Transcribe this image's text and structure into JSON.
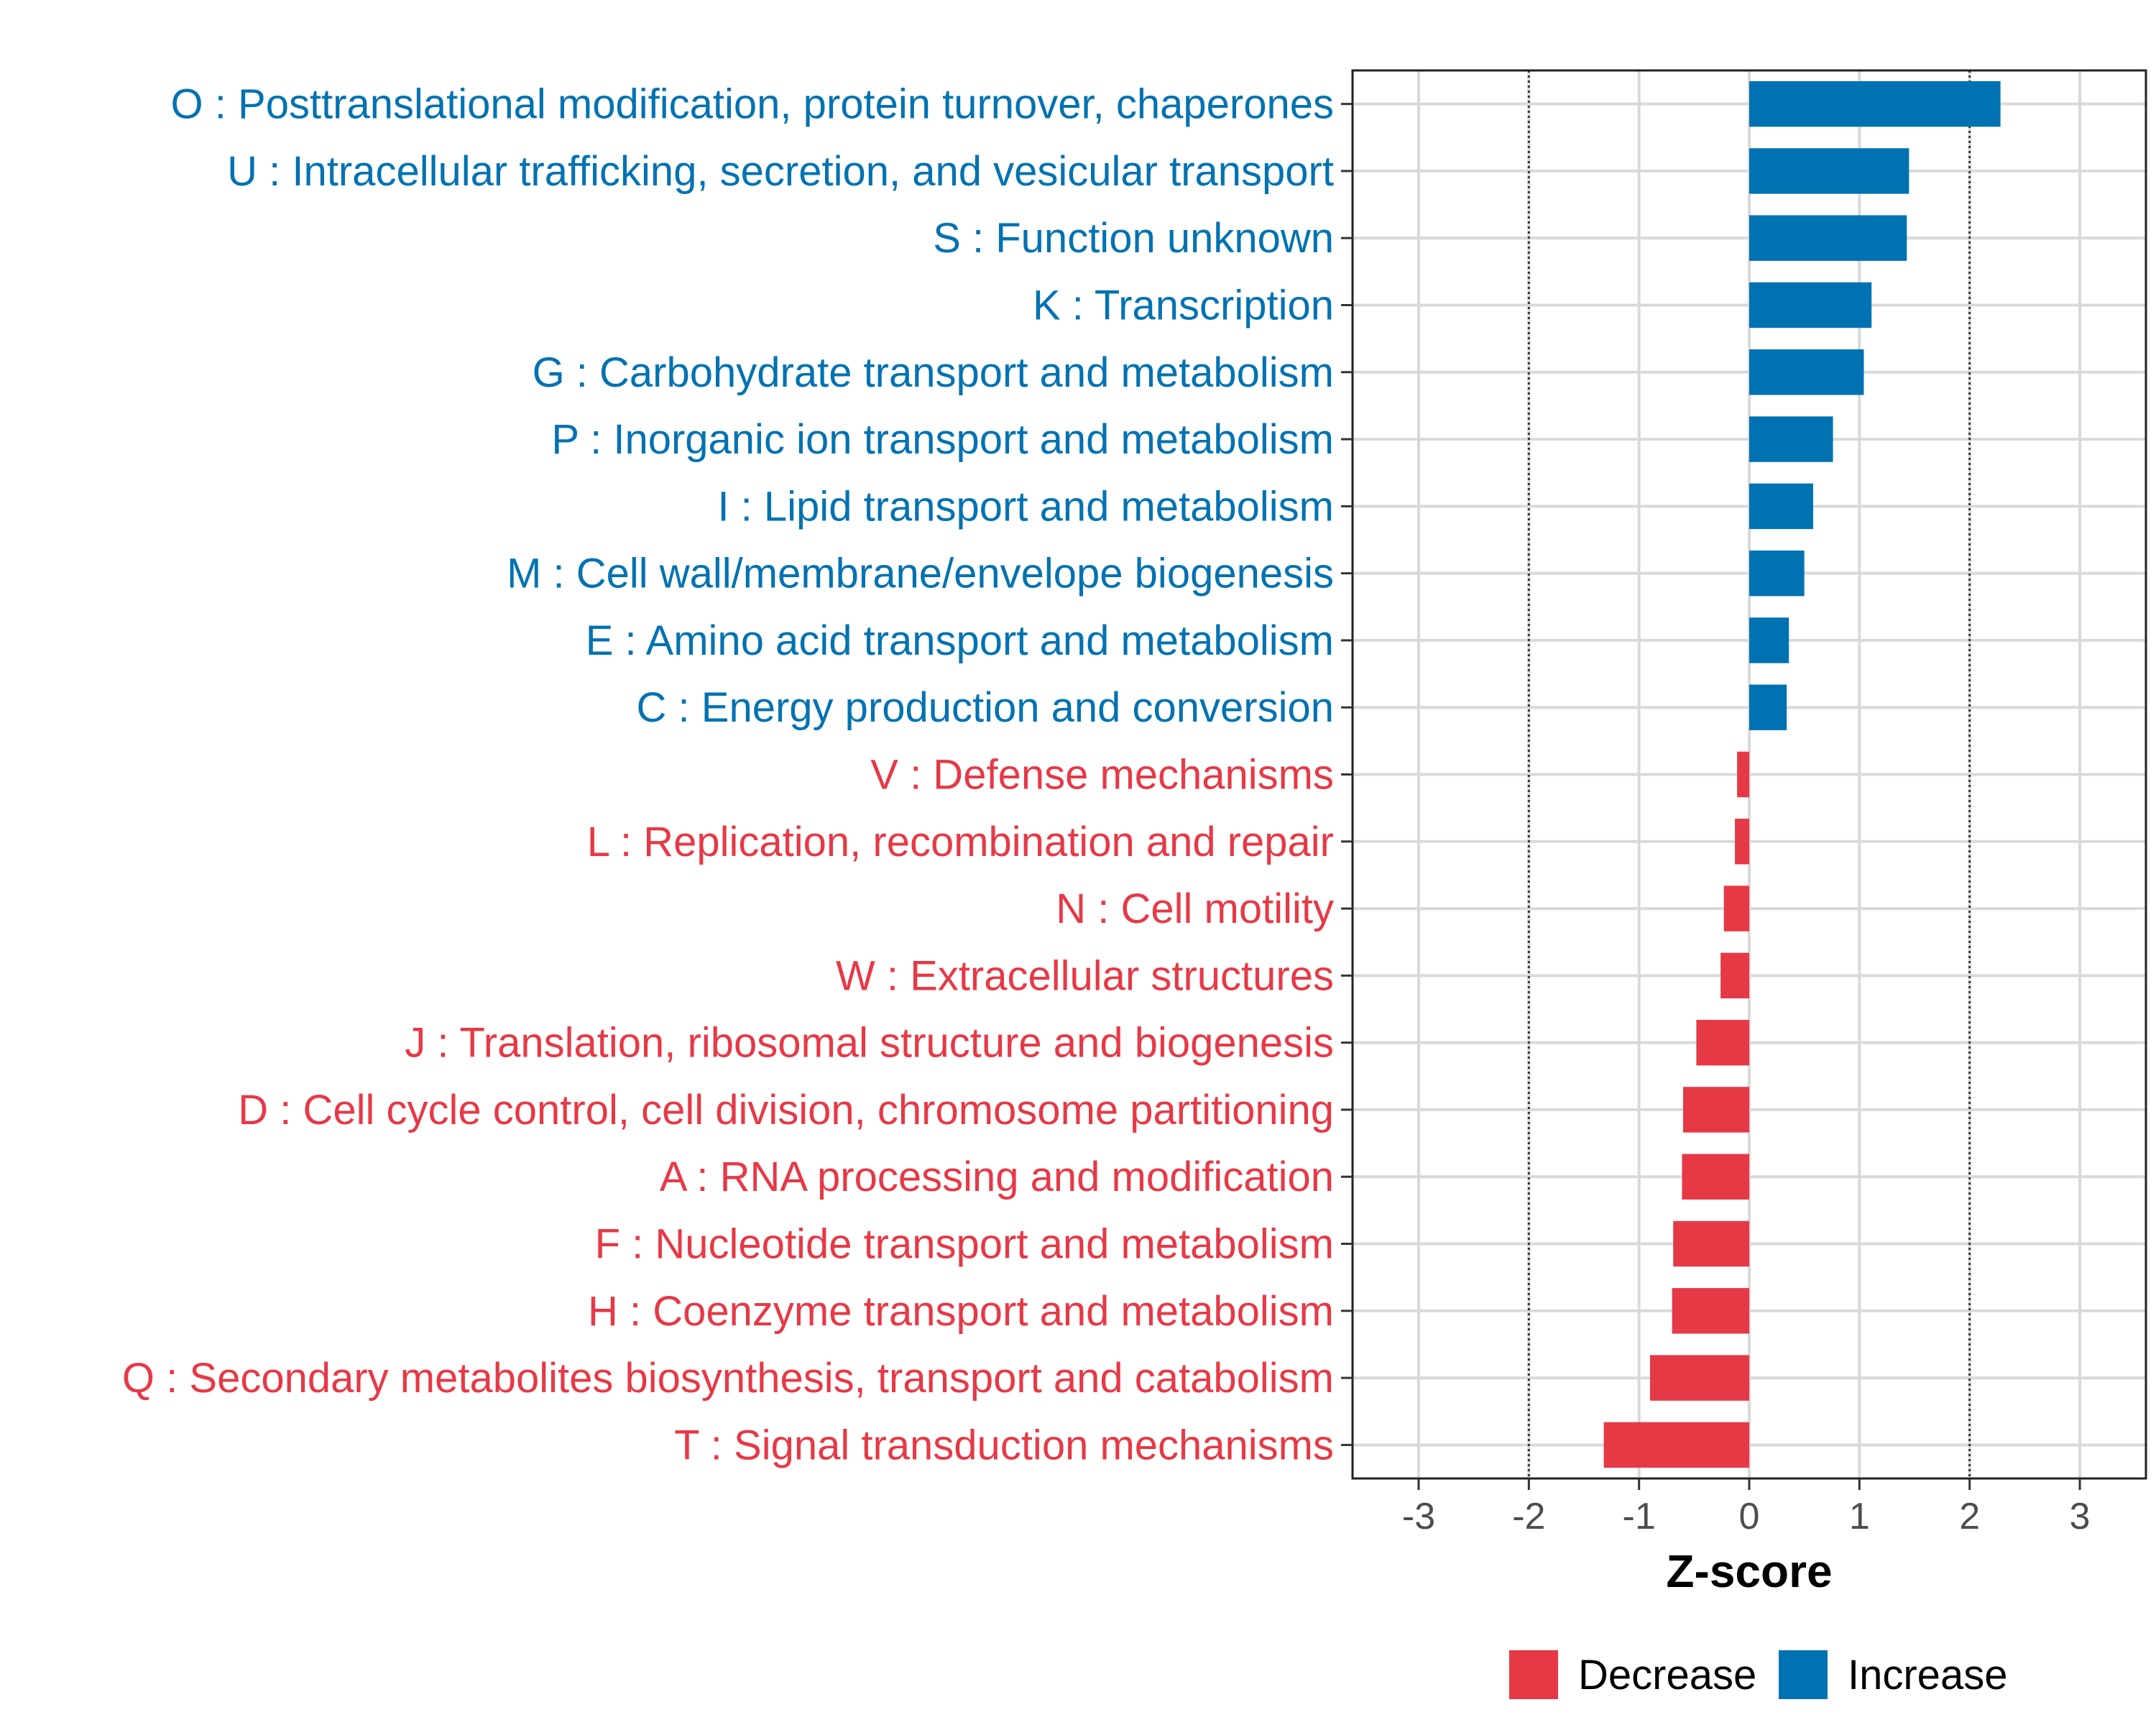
{
  "chart_data": {
    "type": "bar",
    "orientation": "horizontal",
    "xlabel": "Z-score",
    "xlim": [
      -3.6,
      3.6
    ],
    "xticks": [
      "-3",
      "-2",
      "-1",
      "0",
      "1",
      "2",
      "3"
    ],
    "thresholds": [
      -2,
      2
    ],
    "colors": {
      "Increase": "#0072b2",
      "Decrease": "#e63946"
    },
    "legend": {
      "position": "bottom",
      "entries": [
        "Decrease",
        "Increase"
      ]
    },
    "categories": [
      "O : Posttranslational modification, protein turnover, chaperones",
      "U : Intracellular trafficking, secretion, and vesicular transport",
      "S : Function unknown",
      "K : Transcription",
      "G : Carbohydrate transport and metabolism",
      "P : Inorganic ion transport and metabolism",
      "I : Lipid transport and metabolism",
      "M : Cell wall/membrane/envelope biogenesis",
      "E : Amino acid transport and metabolism",
      "C : Energy production and conversion",
      "V : Defense mechanisms",
      "L : Replication, recombination and repair",
      "N : Cell motility",
      "W : Extracellular structures",
      "J : Translation, ribosomal structure and biogenesis",
      "D : Cell cycle control, cell division, chromosome partitioning",
      "A : RNA processing and modification",
      "F : Nucleotide transport and metabolism",
      "H : Coenzyme transport and metabolism",
      "Q : Secondary metabolites biosynthesis, transport and catabolism",
      "T : Signal transduction mechanisms"
    ],
    "values": [
      2.28,
      1.45,
      1.43,
      1.11,
      1.04,
      0.76,
      0.58,
      0.5,
      0.36,
      0.34,
      -0.11,
      -0.13,
      -0.23,
      -0.26,
      -0.48,
      -0.6,
      -0.61,
      -0.69,
      -0.7,
      -0.9,
      -1.32
    ],
    "groups": [
      "Increase",
      "Increase",
      "Increase",
      "Increase",
      "Increase",
      "Increase",
      "Increase",
      "Increase",
      "Increase",
      "Increase",
      "Decrease",
      "Decrease",
      "Decrease",
      "Decrease",
      "Decrease",
      "Decrease",
      "Decrease",
      "Decrease",
      "Decrease",
      "Decrease",
      "Decrease"
    ]
  }
}
